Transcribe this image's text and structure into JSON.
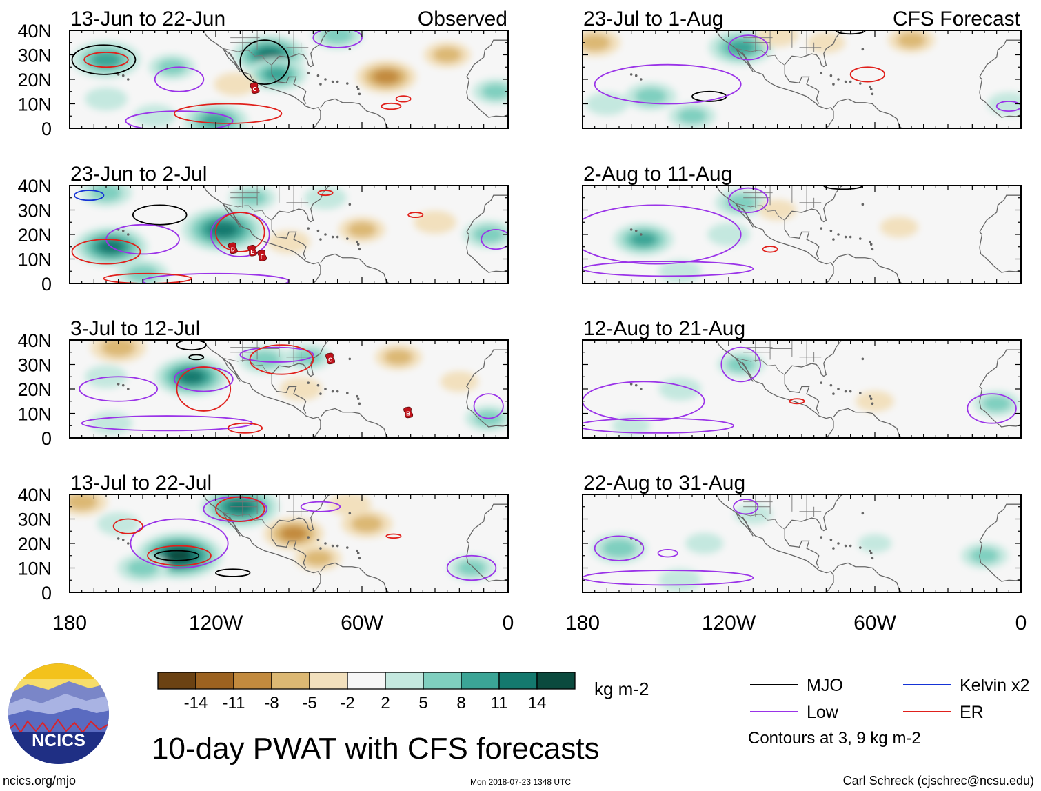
{
  "chart_data": {
    "type": "heatmap",
    "title": "10-day PWAT with CFS forecasts",
    "variable": "PWAT anomaly",
    "units": "kg m-2",
    "domain": {
      "lon_range": [
        -180,
        0
      ],
      "lat_range": [
        0,
        40
      ]
    },
    "x_ticks": [
      {
        "lon": -180,
        "label": "180"
      },
      {
        "lon": -120,
        "label": "120W"
      },
      {
        "lon": -60,
        "label": "60W"
      },
      {
        "lon": 0,
        "label": "0"
      }
    ],
    "y_ticks": [
      {
        "lat": 0,
        "label": "0"
      },
      {
        "lat": 10,
        "label": "10N"
      },
      {
        "lat": 20,
        "label": "20N"
      },
      {
        "lat": 30,
        "label": "30N"
      },
      {
        "lat": 40,
        "label": "40N"
      }
    ],
    "panels": [
      {
        "id": "p1",
        "col": 0,
        "row": 0,
        "period": "13-Jun to 22-Jun",
        "tag": "Observed",
        "anomalies": [
          {
            "lon": -165,
            "lat": 28,
            "v": 10
          },
          {
            "lon": -98,
            "lat": 30,
            "v": 11
          },
          {
            "lon": -95,
            "lat": 22,
            "v": 8
          },
          {
            "lon": -120,
            "lat": 3,
            "v": 9
          },
          {
            "lon": -165,
            "lat": 12,
            "v": 4
          },
          {
            "lon": -138,
            "lat": 25,
            "v": 5
          },
          {
            "lon": -70,
            "lat": 38,
            "v": 6
          },
          {
            "lon": -50,
            "lat": 21,
            "v": -8
          },
          {
            "lon": -112,
            "lat": 18,
            "v": -4
          },
          {
            "lon": -25,
            "lat": 30,
            "v": -5
          },
          {
            "lon": -5,
            "lat": 15,
            "v": 5
          },
          {
            "lon": -145,
            "lat": 5,
            "v": 4
          }
        ],
        "contours": [
          {
            "type": "MJO",
            "lon": -166,
            "lat": 28,
            "rx": 13,
            "ry": 6
          },
          {
            "type": "MJO",
            "lon": -100,
            "lat": 27,
            "rx": 10,
            "ry": 9
          },
          {
            "type": "Low",
            "lon": -135,
            "lat": 20,
            "rx": 10,
            "ry": 5
          },
          {
            "type": "Low",
            "lon": -70,
            "lat": 37,
            "rx": 10,
            "ry": 4
          },
          {
            "type": "Low",
            "lon": -135,
            "lat": 3,
            "rx": 22,
            "ry": 4
          },
          {
            "type": "ER",
            "lon": -165,
            "lat": 28,
            "rx": 9,
            "ry": 3
          },
          {
            "type": "ER",
            "lon": -115,
            "lat": 6,
            "rx": 22,
            "ry": 4
          },
          {
            "type": "ER",
            "lon": -43,
            "lat": 12,
            "rx": 3,
            "ry": 1.2
          },
          {
            "type": "ER",
            "lon": -48,
            "lat": 9,
            "rx": 4,
            "ry": 1.2
          }
        ],
        "storms": [
          {
            "label": "C",
            "lon": -104,
            "lat": 16
          }
        ]
      },
      {
        "id": "p2",
        "col": 0,
        "row": 1,
        "period": "23-Jun to 2-Jul",
        "tag": "",
        "anomalies": [
          {
            "lon": -163,
            "lat": 15,
            "v": 11
          },
          {
            "lon": -117,
            "lat": 22,
            "v": 13
          },
          {
            "lon": -165,
            "lat": 37,
            "v": 6
          },
          {
            "lon": -150,
            "lat": 4,
            "v": 6
          },
          {
            "lon": -105,
            "lat": 35,
            "v": 5
          },
          {
            "lon": -75,
            "lat": 35,
            "v": 4
          },
          {
            "lon": -60,
            "lat": 22,
            "v": -5
          },
          {
            "lon": -30,
            "lat": 25,
            "v": -4
          },
          {
            "lon": -8,
            "lat": 20,
            "v": 6
          },
          {
            "lon": -90,
            "lat": 17,
            "v": -4
          }
        ],
        "contours": [
          {
            "type": "MJO",
            "lon": -143,
            "lat": 28,
            "rx": 11,
            "ry": 4
          },
          {
            "type": "Low",
            "lon": -150,
            "lat": 18,
            "rx": 15,
            "ry": 6
          },
          {
            "type": "Low",
            "lon": -110,
            "lat": 20,
            "rx": 12,
            "ry": 9
          },
          {
            "type": "Low",
            "lon": -120,
            "lat": 1,
            "rx": 30,
            "ry": 3
          },
          {
            "type": "Low",
            "lon": -5,
            "lat": 18,
            "rx": 6,
            "ry": 4
          },
          {
            "type": "ER",
            "lon": -165,
            "lat": 13,
            "rx": 14,
            "ry": 5
          },
          {
            "type": "ER",
            "lon": -110,
            "lat": 21,
            "rx": 10,
            "ry": 8
          },
          {
            "type": "ER",
            "lon": -148,
            "lat": 2,
            "rx": 18,
            "ry": 2
          },
          {
            "type": "ER",
            "lon": -38,
            "lat": 28,
            "rx": 3,
            "ry": 1
          },
          {
            "type": "ER",
            "lon": -75,
            "lat": 37,
            "rx": 3,
            "ry": 1
          }
        ],
        "kelvin": [
          {
            "lon": -172,
            "lat": 36,
            "rx": 6,
            "ry": 2
          }
        ],
        "storms": [
          {
            "label": "D",
            "lon": -113,
            "lat": 14
          },
          {
            "label": "E",
            "lon": -105,
            "lat": 13
          },
          {
            "label": "F",
            "lon": -101,
            "lat": 11
          }
        ]
      },
      {
        "id": "p3",
        "col": 0,
        "row": 2,
        "period": "3-Jul to 12-Jul",
        "tag": "",
        "anomalies": [
          {
            "lon": -130,
            "lat": 25,
            "v": 11
          },
          {
            "lon": -165,
            "lat": 25,
            "v": 4
          },
          {
            "lon": -163,
            "lat": 6,
            "v": 4
          },
          {
            "lon": -100,
            "lat": 32,
            "v": 6
          },
          {
            "lon": -82,
            "lat": 33,
            "v": 5
          },
          {
            "lon": -160,
            "lat": 37,
            "v": -7
          },
          {
            "lon": -45,
            "lat": 33,
            "v": -5
          },
          {
            "lon": -85,
            "lat": 20,
            "v": -4
          },
          {
            "lon": -20,
            "lat": 23,
            "v": -3
          },
          {
            "lon": -8,
            "lat": 8,
            "v": 5
          }
        ],
        "contours": [
          {
            "type": "MJO",
            "lon": -130,
            "lat": 38,
            "rx": 6,
            "ry": 2
          },
          {
            "type": "MJO",
            "lon": -128,
            "lat": 33,
            "rx": 3,
            "ry": 1
          },
          {
            "type": "Low",
            "lon": -125,
            "lat": 24,
            "rx": 12,
            "ry": 5
          },
          {
            "type": "Low",
            "lon": -160,
            "lat": 20,
            "rx": 16,
            "ry": 5
          },
          {
            "type": "Low",
            "lon": -140,
            "lat": 6,
            "rx": 35,
            "ry": 3
          },
          {
            "type": "Low",
            "lon": -95,
            "lat": 34,
            "rx": 15,
            "ry": 3
          },
          {
            "type": "Low",
            "lon": -8,
            "lat": 13,
            "rx": 6,
            "ry": 5
          },
          {
            "type": "ER",
            "lon": -125,
            "lat": 20,
            "rx": 11,
            "ry": 9
          },
          {
            "type": "ER",
            "lon": -93,
            "lat": 32,
            "rx": 13,
            "ry": 6
          },
          {
            "type": "ER",
            "lon": -108,
            "lat": 4,
            "rx": 7,
            "ry": 2
          }
        ],
        "storms": [
          {
            "label": "C",
            "lon": -73,
            "lat": 32
          },
          {
            "label": "B",
            "lon": -41,
            "lat": 10
          }
        ]
      },
      {
        "id": "p4",
        "col": 0,
        "row": 3,
        "period": "13-Jul to 22-Jul",
        "tag": "",
        "anomalies": [
          {
            "lon": -135,
            "lat": 15,
            "v": 14
          },
          {
            "lon": -110,
            "lat": 35,
            "v": 12
          },
          {
            "lon": -160,
            "lat": 28,
            "v": 4
          },
          {
            "lon": -150,
            "lat": 10,
            "v": 6
          },
          {
            "lon": -175,
            "lat": 37,
            "v": -6
          },
          {
            "lon": -88,
            "lat": 24,
            "v": -8
          },
          {
            "lon": -58,
            "lat": 28,
            "v": -6
          },
          {
            "lon": -78,
            "lat": 14,
            "v": -5
          },
          {
            "lon": -65,
            "lat": 36,
            "v": -4
          },
          {
            "lon": -15,
            "lat": 10,
            "v": 5
          }
        ],
        "contours": [
          {
            "type": "MJO",
            "lon": -136,
            "lat": 15,
            "rx": 9,
            "ry": 2
          },
          {
            "type": "MJO",
            "lon": -113,
            "lat": 8,
            "rx": 7,
            "ry": 1.5
          },
          {
            "type": "Low",
            "lon": -135,
            "lat": 20,
            "rx": 20,
            "ry": 10
          },
          {
            "type": "Low",
            "lon": -112,
            "lat": 34,
            "rx": 13,
            "ry": 5
          },
          {
            "type": "Low",
            "lon": -77,
            "lat": 35,
            "rx": 8,
            "ry": 2
          },
          {
            "type": "Low",
            "lon": -15,
            "lat": 10,
            "rx": 10,
            "ry": 5
          },
          {
            "type": "ER",
            "lon": -135,
            "lat": 15,
            "rx": 13,
            "ry": 4
          },
          {
            "type": "ER",
            "lon": -110,
            "lat": 34,
            "rx": 10,
            "ry": 5
          },
          {
            "type": "ER",
            "lon": -156,
            "lat": 27,
            "rx": 6,
            "ry": 3
          },
          {
            "type": "ER",
            "lon": -47,
            "lat": 23,
            "rx": 3,
            "ry": 0.8
          }
        ],
        "storms": []
      },
      {
        "id": "p5",
        "col": 1,
        "row": 0,
        "period": "23-Jul to 1-Aug",
        "tag": "CFS Forecast",
        "anomalies": [
          {
            "lon": -115,
            "lat": 33,
            "v": 9
          },
          {
            "lon": -152,
            "lat": 13,
            "v": 6
          },
          {
            "lon": -170,
            "lat": 10,
            "v": 4
          },
          {
            "lon": -135,
            "lat": 5,
            "v": 5
          },
          {
            "lon": -175,
            "lat": 35,
            "v": -6
          },
          {
            "lon": -100,
            "lat": 38,
            "v": -4
          },
          {
            "lon": -45,
            "lat": 36,
            "v": -5
          },
          {
            "lon": -80,
            "lat": 35,
            "v": -3
          },
          {
            "lon": -5,
            "lat": 10,
            "v": 4
          }
        ],
        "contours": [
          {
            "type": "MJO",
            "lon": -128,
            "lat": 13,
            "rx": 7,
            "ry": 2
          },
          {
            "type": "MJO",
            "lon": -70,
            "lat": 40,
            "rx": 6,
            "ry": 1.5
          },
          {
            "type": "Low",
            "lon": -145,
            "lat": 18,
            "rx": 30,
            "ry": 8
          },
          {
            "type": "Low",
            "lon": -112,
            "lat": 33,
            "rx": 8,
            "ry": 5
          },
          {
            "type": "Low",
            "lon": -5,
            "lat": 9,
            "rx": 5,
            "ry": 2
          },
          {
            "type": "ER",
            "lon": -63,
            "lat": 22,
            "rx": 7,
            "ry": 3
          }
        ],
        "storms": []
      },
      {
        "id": "p6",
        "col": 1,
        "row": 1,
        "period": "2-Aug to 11-Aug",
        "tag": "",
        "anomalies": [
          {
            "lon": -155,
            "lat": 18,
            "v": 8
          },
          {
            "lon": -115,
            "lat": 33,
            "v": 6
          },
          {
            "lon": -120,
            "lat": 20,
            "v": 4
          },
          {
            "lon": -140,
            "lat": 5,
            "v": 4
          },
          {
            "lon": -50,
            "lat": 23,
            "v": -3
          },
          {
            "lon": -100,
            "lat": 30,
            "v": -3
          }
        ],
        "contours": [
          {
            "type": "MJO",
            "lon": -73,
            "lat": 40,
            "rx": 8,
            "ry": 1.5
          },
          {
            "type": "Low",
            "lon": -150,
            "lat": 20,
            "rx": 35,
            "ry": 12
          },
          {
            "type": "Low",
            "lon": -112,
            "lat": 34,
            "rx": 8,
            "ry": 5
          },
          {
            "type": "Low",
            "lon": -145,
            "lat": 6,
            "rx": 35,
            "ry": 3
          },
          {
            "type": "ER",
            "lon": -103,
            "lat": 14,
            "rx": 3,
            "ry": 1.2
          }
        ],
        "storms": []
      },
      {
        "id": "p7",
        "col": 1,
        "row": 2,
        "period": "12-Aug to 21-Aug",
        "tag": "",
        "anomalies": [
          {
            "lon": -115,
            "lat": 30,
            "v": 5
          },
          {
            "lon": -140,
            "lat": 20,
            "v": 4
          },
          {
            "lon": -10,
            "lat": 14,
            "v": 5
          },
          {
            "lon": -160,
            "lat": 5,
            "v": 3
          },
          {
            "lon": -60,
            "lat": 15,
            "v": -3
          }
        ],
        "contours": [
          {
            "type": "Low",
            "lon": -115,
            "lat": 30,
            "rx": 8,
            "ry": 7
          },
          {
            "type": "Low",
            "lon": -155,
            "lat": 15,
            "rx": 25,
            "ry": 8
          },
          {
            "type": "Low",
            "lon": -150,
            "lat": 5,
            "rx": 32,
            "ry": 3
          },
          {
            "type": "Low",
            "lon": -12,
            "lat": 12,
            "rx": 10,
            "ry": 6
          },
          {
            "type": "ER",
            "lon": -92,
            "lat": 15,
            "rx": 3,
            "ry": 1
          }
        ],
        "storms": []
      },
      {
        "id": "p8",
        "col": 1,
        "row": 3,
        "period": "22-Aug to 31-Aug",
        "tag": "",
        "anomalies": [
          {
            "lon": -165,
            "lat": 18,
            "v": 7
          },
          {
            "lon": -130,
            "lat": 20,
            "v": 3
          },
          {
            "lon": -110,
            "lat": 32,
            "v": 3
          },
          {
            "lon": -140,
            "lat": 5,
            "v": 4
          },
          {
            "lon": -15,
            "lat": 15,
            "v": 5
          },
          {
            "lon": -60,
            "lat": 20,
            "v": 2
          }
        ],
        "contours": [
          {
            "type": "Low",
            "lon": -113,
            "lat": 35,
            "rx": 5,
            "ry": 3
          },
          {
            "type": "Low",
            "lon": -165,
            "lat": 18,
            "rx": 10,
            "ry": 5
          },
          {
            "type": "Low",
            "lon": -145,
            "lat": 6,
            "rx": 35,
            "ry": 3
          },
          {
            "type": "Low",
            "lon": -145,
            "lat": 16,
            "rx": 4,
            "ry": 1.5
          }
        ],
        "storms": []
      }
    ],
    "colorbar": {
      "levels": [
        -14,
        -11,
        -8,
        -5,
        -2,
        2,
        5,
        8,
        11,
        14
      ],
      "labels": [
        "-14",
        "-11",
        "-8",
        "-5",
        "-2",
        "2",
        "5",
        "8",
        "11",
        "14"
      ],
      "colors": [
        "#6b4213",
        "#9c6220",
        "#c28a3e",
        "#dcb873",
        "#f2e0bd",
        "#f6f6f6",
        "#c4e8df",
        "#7fcfbf",
        "#3ba596",
        "#14796e",
        "#0b4a3e"
      ],
      "units_label": "kg m-2"
    },
    "legend": {
      "items": [
        {
          "key": "MJO",
          "label": "MJO",
          "color": "#000000"
        },
        {
          "key": "Kelvin",
          "label": "Kelvin x2",
          "color": "#1533d6"
        },
        {
          "key": "Low",
          "label": "Low",
          "color": "#9a33e8"
        },
        {
          "key": "ER",
          "label": "ER",
          "color": "#e0201b"
        }
      ],
      "note": "Contours at 3, 9 kg m-2"
    }
  },
  "footer": {
    "logo_text": "NCICS",
    "site": "ncics.org/mjo",
    "timestamp": "Mon 2018-07-23 1348 UTC",
    "credit": "Carl Schreck (cjschrec@ncsu.edu)"
  }
}
